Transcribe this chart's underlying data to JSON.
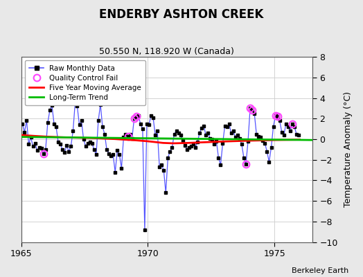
{
  "title": "ENDERBY ASHTON CREEK",
  "subtitle": "50.550 N, 118.920 W (Canada)",
  "credit": "Berkeley Earth",
  "ylabel": "Temperature Anomaly (°C)",
  "xlim": [
    1965.0,
    1976.5
  ],
  "ylim": [
    -10,
    8
  ],
  "yticks": [
    -10,
    -8,
    -6,
    -4,
    -2,
    0,
    2,
    4,
    6,
    8
  ],
  "xticks": [
    1965,
    1970,
    1975
  ],
  "fig_bg_color": "#e8e8e8",
  "plot_bg_color": "#ffffff",
  "raw_color": "#5555ff",
  "ma_color": "#ff0000",
  "trend_color": "#00bb00",
  "qc_color": "#ff44ff",
  "raw_monthly_x": [
    1965.042,
    1965.125,
    1965.208,
    1965.292,
    1965.375,
    1965.458,
    1965.542,
    1965.625,
    1965.708,
    1965.792,
    1965.875,
    1965.958,
    1966.042,
    1966.125,
    1966.208,
    1966.292,
    1966.375,
    1966.458,
    1966.542,
    1966.625,
    1966.708,
    1966.792,
    1966.875,
    1966.958,
    1967.042,
    1967.125,
    1967.208,
    1967.292,
    1967.375,
    1967.458,
    1967.542,
    1967.625,
    1967.708,
    1967.792,
    1967.875,
    1967.958,
    1968.042,
    1968.125,
    1968.208,
    1968.292,
    1968.375,
    1968.458,
    1968.542,
    1968.625,
    1968.708,
    1968.792,
    1968.875,
    1968.958,
    1969.042,
    1969.125,
    1969.208,
    1969.292,
    1969.375,
    1969.458,
    1969.542,
    1969.625,
    1969.708,
    1969.792,
    1969.875,
    1969.958,
    1970.042,
    1970.125,
    1970.208,
    1970.292,
    1970.375,
    1970.458,
    1970.542,
    1970.625,
    1970.708,
    1970.792,
    1970.875,
    1970.958,
    1971.042,
    1971.125,
    1971.208,
    1971.292,
    1971.375,
    1971.458,
    1971.542,
    1971.625,
    1971.708,
    1971.792,
    1971.875,
    1971.958,
    1972.042,
    1972.125,
    1972.208,
    1972.292,
    1972.375,
    1972.458,
    1972.542,
    1972.625,
    1972.708,
    1972.792,
    1972.875,
    1972.958,
    1973.042,
    1973.125,
    1973.208,
    1973.292,
    1973.375,
    1973.458,
    1973.542,
    1973.625,
    1973.708,
    1973.792,
    1973.875,
    1973.958,
    1974.042,
    1974.125,
    1974.208,
    1974.292,
    1974.375,
    1974.458,
    1974.542,
    1974.625,
    1974.708,
    1974.792,
    1974.875,
    1974.958,
    1975.042,
    1975.125,
    1975.208,
    1975.292,
    1975.375,
    1975.458,
    1975.542,
    1975.625,
    1975.708,
    1975.792,
    1975.875,
    1975.958
  ],
  "raw_monthly_y": [
    1.5,
    0.7,
    1.8,
    -0.5,
    0.2,
    -0.7,
    -0.4,
    -1.1,
    -0.8,
    -0.9,
    -1.4,
    -1.0,
    1.6,
    2.8,
    3.3,
    1.5,
    1.2,
    -0.3,
    -0.5,
    -1.0,
    -1.3,
    -0.6,
    -1.2,
    -0.7,
    0.8,
    3.5,
    3.2,
    1.4,
    1.8,
    0.0,
    -0.7,
    -0.4,
    -0.3,
    -0.4,
    -1.0,
    -1.5,
    1.8,
    3.4,
    1.2,
    0.5,
    -1.0,
    -1.4,
    -1.6,
    -1.5,
    -3.2,
    -1.1,
    -1.5,
    -2.8,
    0.2,
    0.5,
    0.3,
    0.5,
    0.1,
    2.0,
    2.2,
    2.3,
    1.5,
    1.0,
    -8.8,
    1.5,
    1.4,
    2.3,
    2.1,
    0.4,
    0.8,
    -2.7,
    -2.5,
    -3.0,
    -5.2,
    -1.8,
    -1.2,
    -0.8,
    0.5,
    0.8,
    0.6,
    0.4,
    -0.1,
    -0.6,
    -1.0,
    -0.8,
    -0.7,
    -0.5,
    -0.8,
    -0.3,
    0.6,
    1.1,
    1.3,
    0.4,
    0.6,
    0.1,
    0.0,
    -0.5,
    -0.2,
    -1.8,
    -2.5,
    -0.4,
    1.3,
    1.2,
    1.5,
    0.6,
    0.8,
    0.2,
    0.4,
    0.1,
    -0.5,
    -1.8,
    -2.4,
    -0.2,
    3.0,
    2.8,
    2.5,
    0.5,
    0.3,
    0.2,
    -0.1,
    -0.4,
    -1.2,
    -2.2,
    -0.8,
    1.2,
    2.3,
    2.2,
    1.8,
    0.7,
    0.4,
    1.5,
    1.2,
    0.8,
    1.5,
    1.2,
    0.5,
    0.4
  ],
  "qc_fail_x": [
    1965.875,
    1969.208,
    1969.458,
    1969.542,
    1973.875,
    1974.042,
    1974.125,
    1975.042,
    1975.125,
    1975.708
  ],
  "qc_fail_y": [
    -1.4,
    0.3,
    2.0,
    2.2,
    -2.4,
    3.0,
    2.8,
    2.3,
    2.2,
    1.5
  ],
  "ma_x": [
    1965.0,
    1965.5,
    1966.0,
    1966.5,
    1967.0,
    1967.5,
    1968.0,
    1968.3,
    1968.7,
    1969.0,
    1969.3,
    1969.5,
    1969.7,
    1970.0,
    1970.3,
    1970.6,
    1971.0,
    1971.5,
    1972.0,
    1972.5,
    1973.0,
    1973.5,
    1974.0,
    1974.5,
    1975.0,
    1975.5,
    1976.0
  ],
  "ma_y": [
    0.4,
    0.32,
    0.25,
    0.2,
    0.16,
    0.13,
    0.1,
    0.06,
    0.02,
    -0.03,
    -0.07,
    -0.1,
    -0.14,
    -0.2,
    -0.28,
    -0.36,
    -0.4,
    -0.37,
    -0.32,
    -0.27,
    -0.22,
    -0.18,
    -0.14,
    -0.11,
    -0.08,
    -0.06,
    -0.04
  ],
  "trend_x": [
    1965.0,
    1976.5
  ],
  "trend_y": [
    0.22,
    -0.08
  ]
}
